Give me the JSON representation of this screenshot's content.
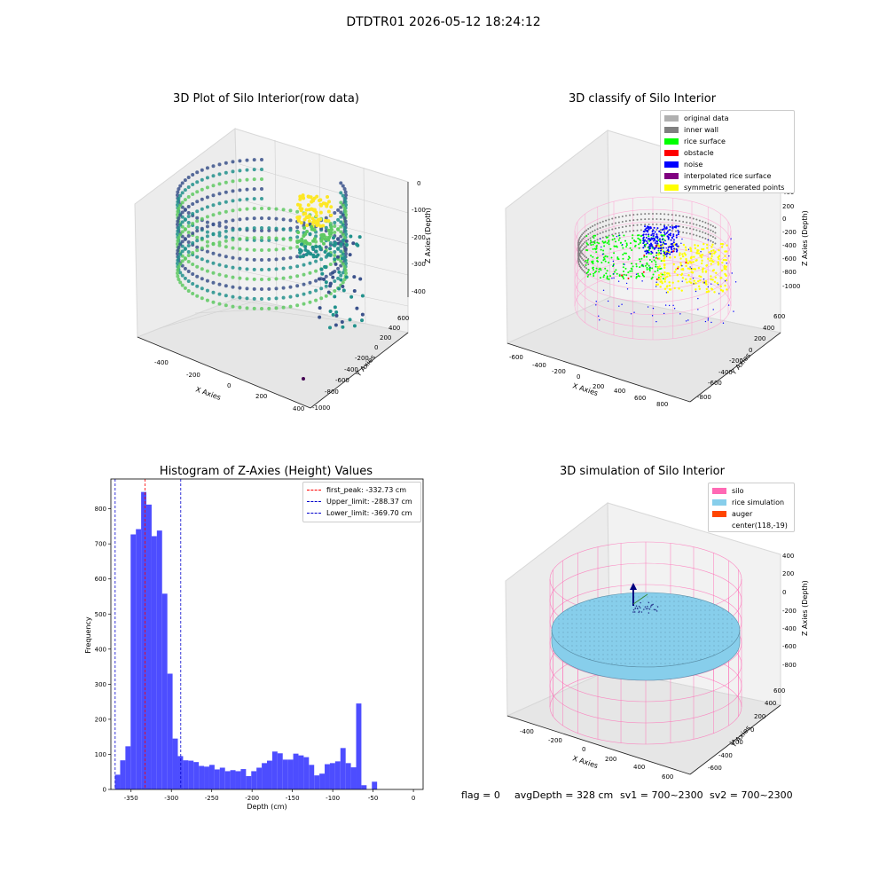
{
  "suptitle": "DTDTR01 2026-05-12 18:24:12",
  "panels": {
    "raw": {
      "title": "3D Plot of Silo Interior(row data)",
      "xlabel": "X Axies",
      "ylabel": "Y Axies",
      "zlabel": "Z Axies (Depth)",
      "xticks": [
        "-400",
        "-200",
        "0",
        "200",
        "400"
      ],
      "yticks": [
        "600",
        "400",
        "200",
        "0",
        "-200",
        "-400",
        "-600",
        "-800",
        "-1000"
      ],
      "zticks": [
        "0",
        "-100",
        "-200",
        "-300",
        "-400"
      ],
      "colormap": [
        "#440154",
        "#3b528b",
        "#21918c",
        "#5ec962",
        "#fde725"
      ]
    },
    "classify": {
      "title": "3D classify of Silo Interior",
      "xlabel": "X Axies",
      "ylabel": "Y Axies",
      "zlabel": "Z Axies (Depth)",
      "xticks": [
        "-600",
        "-400",
        "-200",
        "0",
        "200",
        "400",
        "600",
        "800"
      ],
      "yticks": [
        "600",
        "400",
        "200",
        "0",
        "-200",
        "-400",
        "-600",
        "-800"
      ],
      "zticks": [
        "200",
        "0",
        "-200",
        "-400",
        "-600",
        "-800",
        "-1000"
      ],
      "zticks_top": [
        "400",
        "200"
      ],
      "legend": [
        {
          "label": "original data",
          "color": "#b0b0b0"
        },
        {
          "label": "inner wall",
          "color": "#808080"
        },
        {
          "label": "rice surface",
          "color": "#00ff00"
        },
        {
          "label": "obstacle",
          "color": "#ff0000"
        },
        {
          "label": "noise",
          "color": "#0000ff"
        },
        {
          "label": "interpolated rice surface",
          "color": "#800080"
        },
        {
          "label": "symmetric generated points",
          "color": "#ffff00"
        }
      ]
    },
    "histogram": {
      "title": "Histogram of Z-Axies (Height) Values",
      "xlabel": "Depth (cm)",
      "ylabel": "Frequency",
      "bar_color": "#4d4dff"
    },
    "simulation": {
      "title": "3D simulation of Silo Interior",
      "xlabel": "X Axies",
      "ylabel": "Y Axies",
      "zlabel": "Z Axies (Depth)",
      "xticks": [
        "-400",
        "-200",
        "0",
        "200",
        "400",
        "600"
      ],
      "yticks": [
        "600",
        "400",
        "200",
        "0",
        "-200",
        "-400",
        "-600"
      ],
      "zticks": [
        "400",
        "200",
        "0",
        "-200",
        "-400",
        "-600",
        "-800"
      ],
      "legend": [
        {
          "label": "silo",
          "color": "#ff69b4"
        },
        {
          "label": "rice simulation",
          "color": "#87ceeb"
        },
        {
          "label": "auger",
          "color": "#ff4500"
        },
        {
          "label": "center(118,-19)",
          "color": ""
        }
      ]
    }
  },
  "footer": {
    "flag": "flag = 0",
    "avg_depth": "avgDepth = 328 cm",
    "sv1": "sv1 = 700~2300",
    "sv2": "sv2 = 700~2300"
  },
  "chart_data": [
    {
      "type": "scatter",
      "title": "3D Plot of Silo Interior(row data)",
      "xlabel": "X Axies",
      "ylabel": "Y Axies",
      "zlabel": "Z Axies (Depth)",
      "xlim": [
        -500,
        450
      ],
      "ylim": [
        -1000,
        650
      ],
      "zlim": [
        -450,
        0
      ]
    },
    {
      "type": "scatter",
      "title": "3D classify of Silo Interior",
      "xlabel": "X Axies",
      "ylabel": "Y Axies",
      "zlabel": "Z Axies (Depth)",
      "series": [
        {
          "name": "original data"
        },
        {
          "name": "inner wall"
        },
        {
          "name": "rice surface"
        },
        {
          "name": "obstacle"
        },
        {
          "name": "noise"
        },
        {
          "name": "interpolated rice surface"
        },
        {
          "name": "symmetric generated points"
        }
      ]
    },
    {
      "type": "bar",
      "title": "Histogram of Z-Axies (Height) Values",
      "xlabel": "Depth (cm)",
      "ylabel": "Frequency",
      "xlim": [
        -375,
        12
      ],
      "ylim": [
        0,
        885
      ],
      "xticks": [
        -350,
        -300,
        -250,
        -200,
        -150,
        -100,
        -50,
        0
      ],
      "yticks": [
        0,
        100,
        200,
        300,
        400,
        500,
        600,
        700,
        800
      ],
      "bin_start": -370,
      "bin_width": 6.5,
      "values": [
        42,
        83,
        123,
        727,
        742,
        848,
        812,
        722,
        738,
        558,
        330,
        145,
        95,
        83,
        82,
        78,
        67,
        65,
        70,
        57,
        62,
        52,
        55,
        52,
        58,
        38,
        52,
        62,
        75,
        82,
        108,
        103,
        85,
        85,
        102,
        97,
        92,
        70,
        40,
        45,
        72,
        75,
        80,
        118,
        75,
        63,
        245,
        12,
        0,
        22
      ],
      "vlines": [
        {
          "label": "first_peak: -332.73 cm",
          "value": -332.73,
          "color": "#ff0000"
        },
        {
          "label": "Upper_limit: -288.37 cm",
          "value": -288.37,
          "color": "#0000cc"
        },
        {
          "label": "Lower_limit: -369.70 cm",
          "value": -369.7,
          "color": "#0000cc"
        }
      ],
      "legend": "top-right"
    },
    {
      "type": "scatter",
      "title": "3D simulation of Silo Interior",
      "xlabel": "X Axies",
      "ylabel": "Y Axies",
      "zlabel": "Z Axies (Depth)",
      "series": [
        {
          "name": "silo"
        },
        {
          "name": "rice simulation"
        },
        {
          "name": "auger"
        },
        {
          "name": "center(118,-19)"
        }
      ]
    }
  ]
}
